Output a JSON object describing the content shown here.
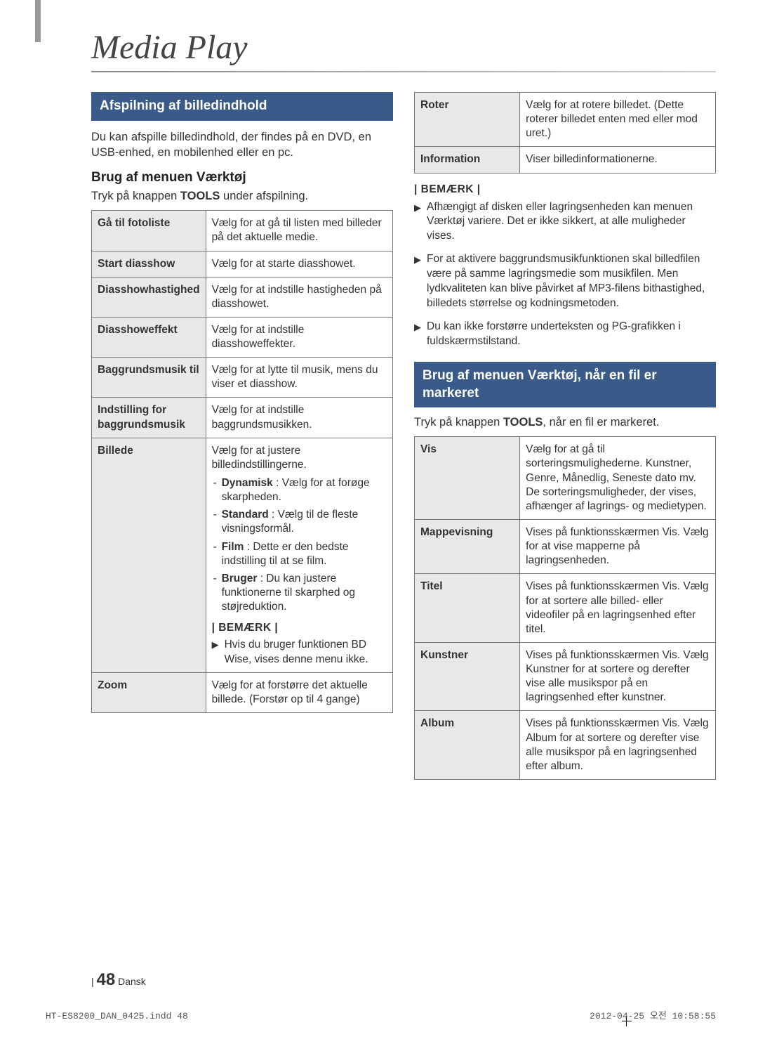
{
  "page": {
    "title": "Media Play",
    "footer_page": "48",
    "footer_lang": "Dansk",
    "print_left": "HT-ES8200_DAN_0425.indd   48",
    "print_right": "2012-04-25   오전 10:58:55"
  },
  "left": {
    "section_title": "Afspilning af billedindhold",
    "intro": "Du kan afspille billedindhold, der findes på en DVD, en USB-enhed, en mobilenhed eller en pc.",
    "sub_heading": "Brug af menuen Værktøj",
    "sub_text_pre": "Tryk på knappen ",
    "sub_text_bold": "TOOLS",
    "sub_text_post": " under afspilning.",
    "rows": [
      {
        "label": "Gå til fotoliste",
        "value": "Vælg for at gå til listen med billeder på det aktuelle medie."
      },
      {
        "label": "Start diasshow",
        "value": "Vælg for at starte diasshowet."
      },
      {
        "label": "Diasshowhastighed",
        "value": "Vælg for at indstille hastigheden på diasshowet."
      },
      {
        "label": "Diasshoweffekt",
        "value": "Vælg for at indstille diasshoweffekter."
      },
      {
        "label": "Baggrundsmusik til",
        "value": "Vælg for at lytte til musik, mens du viser et diasshow."
      },
      {
        "label": "Indstilling for baggrundsmusik",
        "value": "Vælg for at indstille baggrundsmusikken."
      }
    ],
    "billede": {
      "label": "Billede",
      "intro": "Vælg for at justere billedindstillingerne.",
      "items": [
        {
          "bold": "Dynamisk",
          "text": " : Vælg for at forøge skarpheden."
        },
        {
          "bold": "Standard",
          "text": " : Vælg til de fleste visningsformål."
        },
        {
          "bold": "Film",
          "text": " : Dette er den bedste indstilling til at se film."
        },
        {
          "bold": "Bruger",
          "text": " : Du kan justere funktionerne til skarphed og støjreduktion."
        }
      ],
      "note_label": "| BEMÆRK |",
      "note_text": "Hvis du bruger funktionen BD Wise, vises denne menu ikke."
    },
    "zoom": {
      "label": "Zoom",
      "value": "Vælg for at forstørre det aktuelle billede. (Forstør op til 4 gange)"
    }
  },
  "right": {
    "top_rows": [
      {
        "label": "Roter",
        "value": "Vælg for at rotere billedet. (Dette roterer billedet enten med eller mod uret.)"
      },
      {
        "label": "Information",
        "value": "Viser billedinformationerne."
      }
    ],
    "note_label": "| BEMÆRK |",
    "notes": [
      "Afhængigt af disken eller lagringsenheden kan menuen Værktøj variere. Det er ikke sikkert, at alle muligheder vises.",
      "For at aktivere baggrundsmusikfunktionen skal billedfilen være på samme lagringsmedie som musikfilen. Men lydkvaliteten kan blive påvirket af MP3-filens bithastighed, billedets størrelse og kodningsmetoden.",
      "Du kan ikke forstørre underteksten og PG-grafikken i fuldskærmstilstand."
    ],
    "section_title": "Brug af menuen Værktøj, når en fil er markeret",
    "sub_text_pre": "Tryk på knappen ",
    "sub_text_bold": "TOOLS",
    "sub_text_post": ", når en fil er markeret.",
    "rows": [
      {
        "label": "Vis",
        "value": "Vælg for at gå til sorteringsmulighederne. Kunstner, Genre, Månedlig, Seneste dato mv. De sorteringsmuligheder, der vises, afhænger af lagrings- og medietypen."
      },
      {
        "label": "Mappevisning",
        "value": "Vises på funktionsskærmen Vis. Vælg for at vise mapperne på lagringsenheden."
      },
      {
        "label": "Titel",
        "value": "Vises på funktionsskærmen Vis. Vælg for at sortere alle billed- eller videofiler på en lagringsenhed efter titel."
      },
      {
        "label": "Kunstner",
        "value": "Vises på funktionsskærmen Vis. Vælg Kunstner for at sortere og derefter vise alle musikspor på en lagringsenhed efter kunstner."
      },
      {
        "label": "Album",
        "value": "Vises på funktionsskærmen Vis. Vælg Album for at sortere og derefter vise alle musikspor på en lagringsenhed efter album."
      }
    ]
  },
  "colors": {
    "section_bg": "#3a5a8a",
    "cell_label_bg": "#e8e8e8",
    "border": "#777777"
  }
}
